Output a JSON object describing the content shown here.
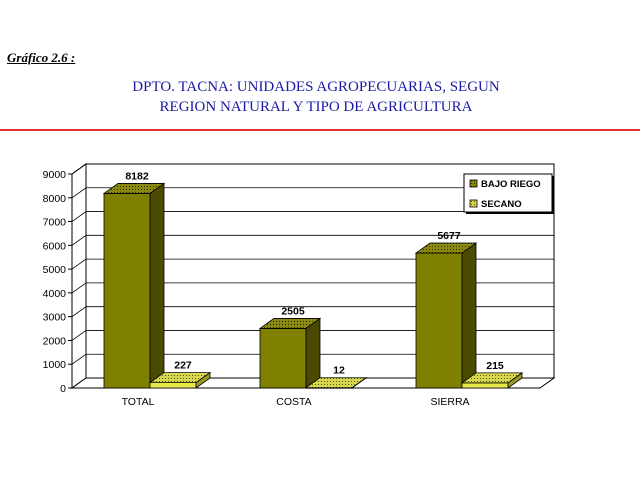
{
  "header": {
    "caption": "Gráfico 2.6 :",
    "title_line1": "DPTO. TACNA: UNIDADES AGROPECUARIAS, SEGUN",
    "title_line2": "REGION NATURAL Y TIPO DE AGRICULTURA"
  },
  "chart_data": {
    "type": "bar",
    "categories": [
      "TOTAL",
      "COSTA",
      "SIERRA"
    ],
    "series": [
      {
        "name": "BAJO RIEGO",
        "values": [
          8182,
          2505,
          5677
        ],
        "color": "#808000"
      },
      {
        "name": "SECANO",
        "values": [
          227,
          12,
          215
        ],
        "color": "#e8e84a"
      }
    ],
    "ylim": [
      0,
      9000
    ],
    "yticks": [
      0,
      1000,
      2000,
      3000,
      4000,
      5000,
      6000,
      7000,
      8000,
      9000
    ],
    "grid": true,
    "legend_position": "top-right",
    "three_d": true
  }
}
